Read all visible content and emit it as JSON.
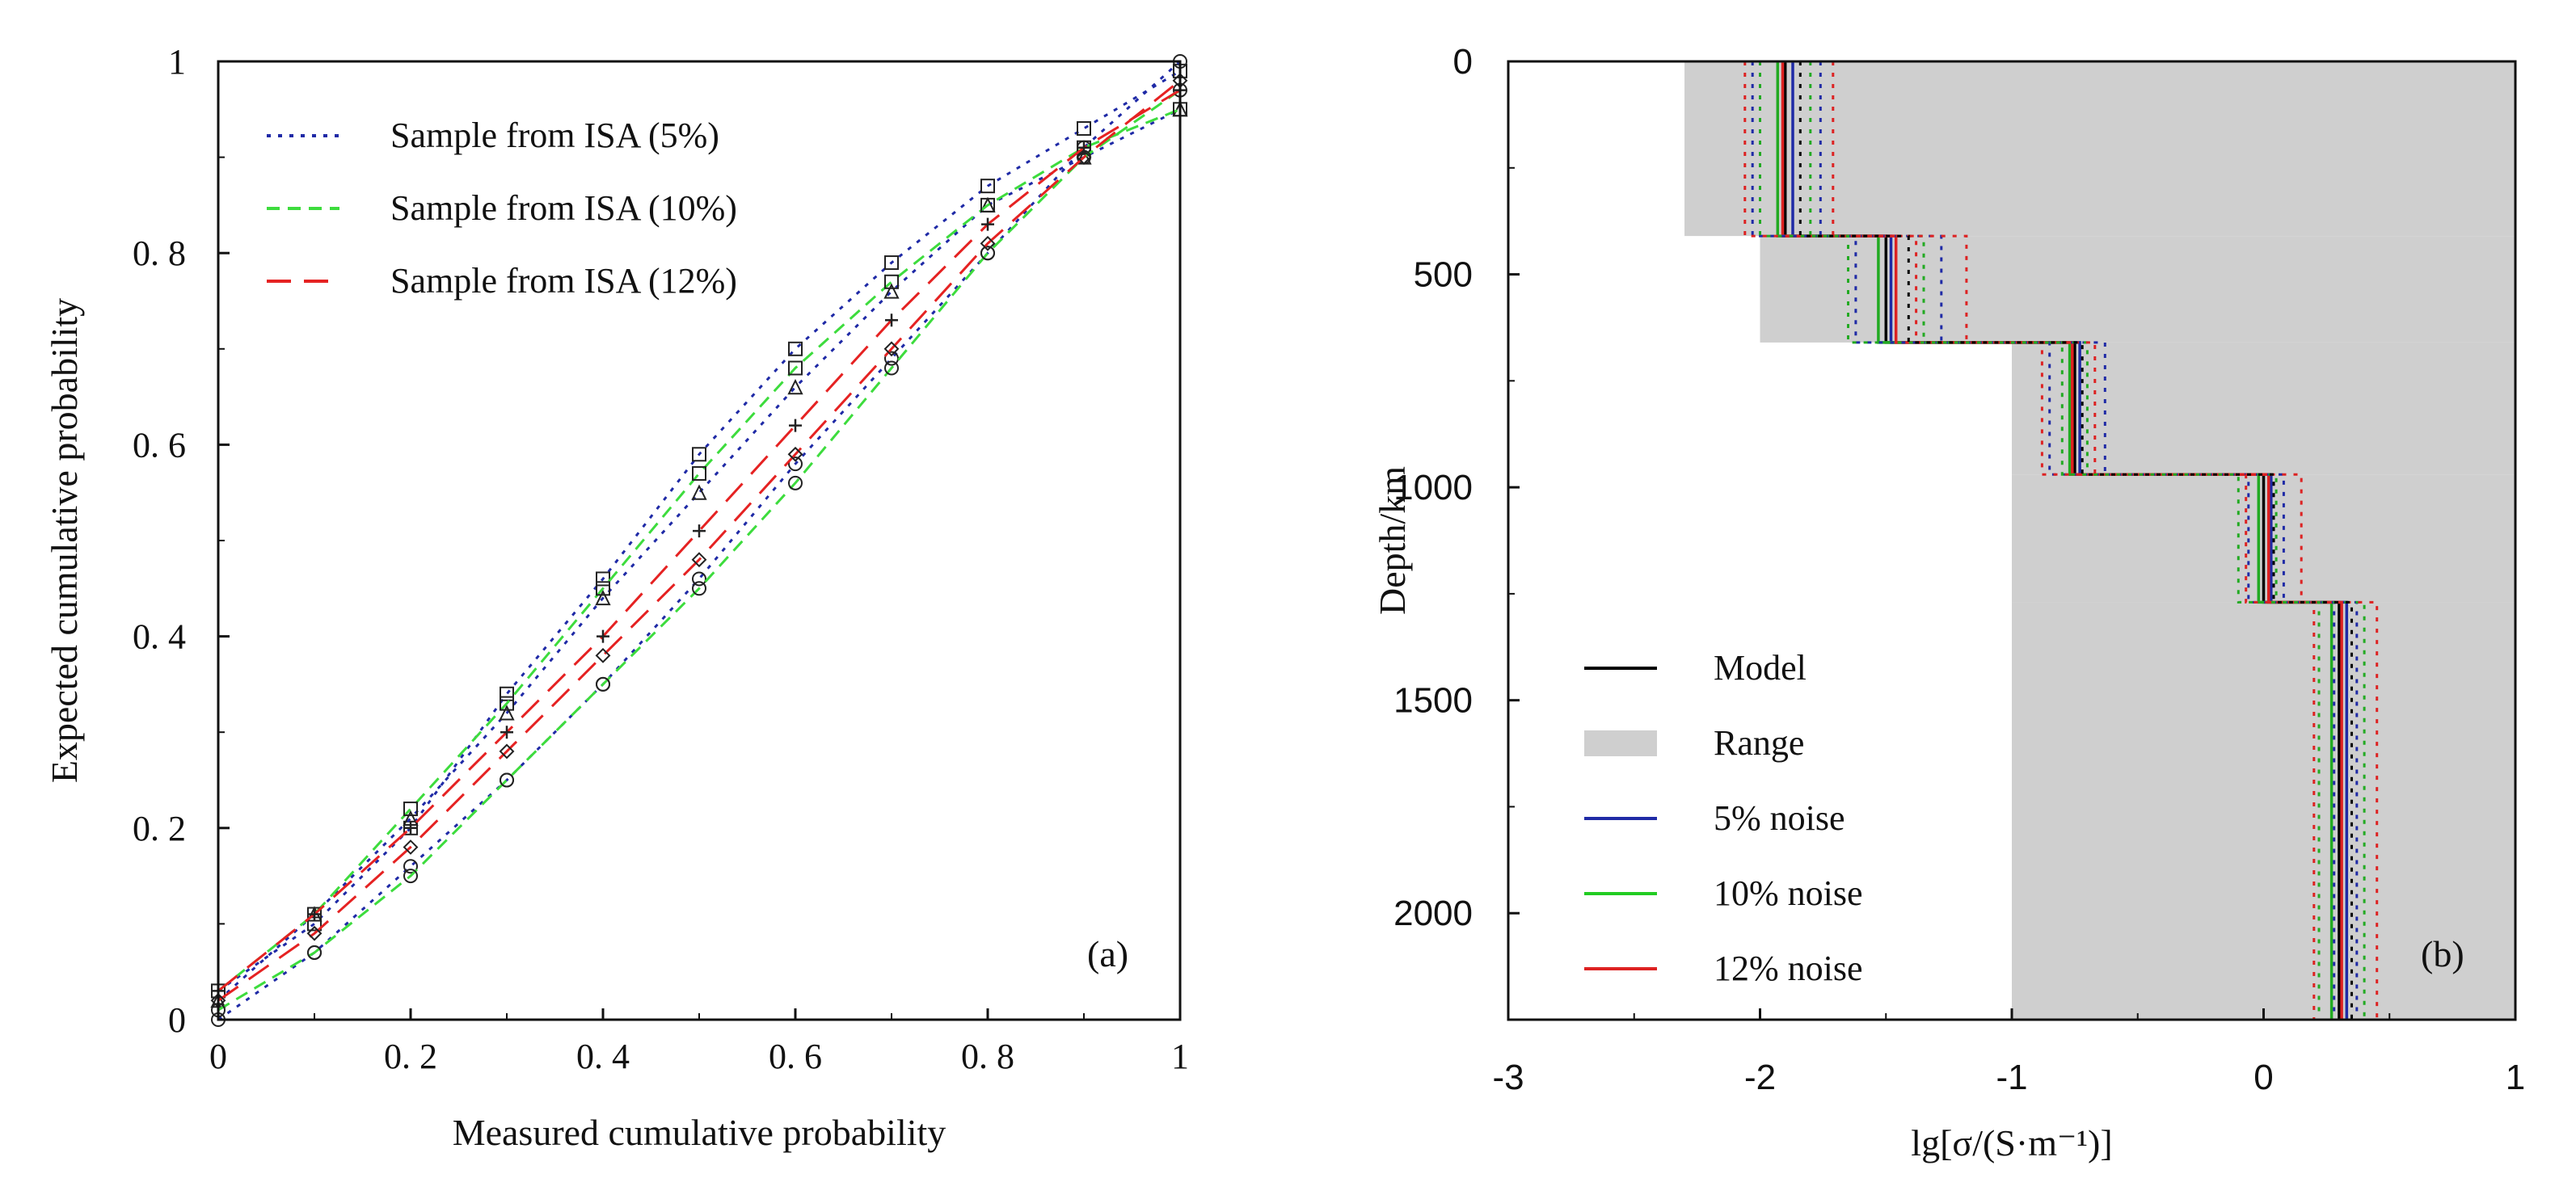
{
  "chart_data": [
    {
      "type": "scatter",
      "panel_label": "(a)",
      "xlabel": "Measured cumulative probability",
      "ylabel": "Expected cumulative probability",
      "xlim": [
        0,
        1
      ],
      "ylim": [
        0,
        1
      ],
      "xticks": [
        "0",
        "0. 2",
        "0. 4",
        "0. 6",
        "0. 8",
        "1"
      ],
      "yticks": [
        "0",
        "0. 2",
        "0. 4",
        "0. 6",
        "0. 8",
        "1"
      ],
      "legend": [
        "Sample from ISA (5%)",
        "Sample from ISA (10%)",
        "Sample from ISA (12%)"
      ],
      "series": [
        {
          "name": "Sample from ISA (5%)",
          "color": "#1f2aa6",
          "dash": "dotted",
          "marker": "square",
          "points": [
            [
              0.0,
              0.03
            ],
            [
              0.1,
              0.1
            ],
            [
              0.2,
              0.2
            ],
            [
              0.3,
              0.34
            ],
            [
              0.4,
              0.46
            ],
            [
              0.5,
              0.59
            ],
            [
              0.6,
              0.7
            ],
            [
              0.7,
              0.79
            ],
            [
              0.8,
              0.87
            ],
            [
              0.9,
              0.93
            ],
            [
              1.0,
              0.99
            ]
          ]
        },
        {
          "name": "Sample from ISA (5%)",
          "color": "#1f2aa6",
          "dash": "dotted",
          "marker": "circle",
          "points": [
            [
              0.0,
              0.0
            ],
            [
              0.1,
              0.07
            ],
            [
              0.2,
              0.16
            ],
            [
              0.3,
              0.25
            ],
            [
              0.4,
              0.35
            ],
            [
              0.5,
              0.46
            ],
            [
              0.6,
              0.58
            ],
            [
              0.7,
              0.69
            ],
            [
              0.8,
              0.8
            ],
            [
              0.9,
              0.91
            ],
            [
              1.0,
              1.0
            ]
          ]
        },
        {
          "name": "Sample from ISA (5%)",
          "color": "#1f2aa6",
          "dash": "dotted",
          "marker": "tri",
          "points": [
            [
              0.0,
              0.02
            ],
            [
              0.1,
              0.11
            ],
            [
              0.2,
              0.21
            ],
            [
              0.3,
              0.32
            ],
            [
              0.4,
              0.44
            ],
            [
              0.5,
              0.55
            ],
            [
              0.6,
              0.66
            ],
            [
              0.7,
              0.76
            ],
            [
              0.8,
              0.85
            ],
            [
              0.9,
              0.9
            ],
            [
              1.0,
              0.95
            ]
          ]
        },
        {
          "name": "Sample from ISA (10%)",
          "color": "#3ddc3d",
          "dash": "dashed",
          "marker": "square",
          "points": [
            [
              0.0,
              0.03
            ],
            [
              0.1,
              0.11
            ],
            [
              0.2,
              0.22
            ],
            [
              0.3,
              0.33
            ],
            [
              0.4,
              0.45
            ],
            [
              0.5,
              0.57
            ],
            [
              0.6,
              0.68
            ],
            [
              0.7,
              0.77
            ],
            [
              0.8,
              0.85
            ],
            [
              0.9,
              0.91
            ],
            [
              1.0,
              0.95
            ]
          ]
        },
        {
          "name": "Sample from ISA (10%)",
          "color": "#3ddc3d",
          "dash": "dashed",
          "marker": "circle",
          "points": [
            [
              0.0,
              0.01
            ],
            [
              0.1,
              0.07
            ],
            [
              0.2,
              0.15
            ],
            [
              0.3,
              0.25
            ],
            [
              0.4,
              0.35
            ],
            [
              0.5,
              0.45
            ],
            [
              0.6,
              0.56
            ],
            [
              0.7,
              0.68
            ],
            [
              0.8,
              0.8
            ],
            [
              0.9,
              0.9
            ],
            [
              1.0,
              0.97
            ]
          ]
        },
        {
          "name": "Sample from ISA (12%)",
          "color": "#e52222",
          "dash": "longdash",
          "marker": "plus",
          "points": [
            [
              0.0,
              0.03
            ],
            [
              0.1,
              0.11
            ],
            [
              0.2,
              0.2
            ],
            [
              0.3,
              0.3
            ],
            [
              0.4,
              0.4
            ],
            [
              0.5,
              0.51
            ],
            [
              0.6,
              0.62
            ],
            [
              0.7,
              0.73
            ],
            [
              0.8,
              0.83
            ],
            [
              0.9,
              0.91
            ],
            [
              1.0,
              0.97
            ]
          ]
        },
        {
          "name": "Sample from ISA (12%)",
          "color": "#e52222",
          "dash": "longdash",
          "marker": "diamond",
          "points": [
            [
              0.0,
              0.02
            ],
            [
              0.1,
              0.09
            ],
            [
              0.2,
              0.18
            ],
            [
              0.3,
              0.28
            ],
            [
              0.4,
              0.38
            ],
            [
              0.5,
              0.48
            ],
            [
              0.6,
              0.59
            ],
            [
              0.7,
              0.7
            ],
            [
              0.8,
              0.81
            ],
            [
              0.9,
              0.9
            ],
            [
              1.0,
              0.98
            ]
          ]
        }
      ]
    },
    {
      "type": "line",
      "panel_label": "(b)",
      "xlabel": "lg[σ/(S·m⁻¹)]",
      "ylabel": "Depth/km",
      "xlim": [
        -3,
        1
      ],
      "ylim": [
        0,
        2250
      ],
      "y_inverted": true,
      "xticks": [
        "-3",
        "-2",
        "-1",
        "0",
        "1"
      ],
      "yticks": [
        "0",
        "500",
        "1000",
        "1500",
        "2000"
      ],
      "layer_boundaries_km": [
        0,
        410,
        660,
        970,
        1270,
        2250
      ],
      "range_min": [
        -2.3,
        -2.0,
        -1.0,
        -1.0,
        -1.0
      ],
      "range_max": [
        1.0,
        1.0,
        1.0,
        1.0,
        1.0
      ],
      "legend": [
        "Model",
        "Range",
        "5% noise",
        "10% noise",
        "12% noise"
      ],
      "series": [
        {
          "name": "Model",
          "color": "#000000",
          "style": "solid",
          "values": [
            -1.9,
            -1.5,
            -0.75,
            0.0,
            0.3
          ]
        },
        {
          "name": "5% noise",
          "color": "#1f2aa6",
          "style": "solid",
          "values": [
            -1.87,
            -1.48,
            -0.73,
            0.03,
            0.33
          ]
        },
        {
          "name": "10% noise",
          "color": "#22aa22",
          "style": "solid",
          "values": [
            -1.93,
            -1.53,
            -0.77,
            -0.02,
            0.27
          ]
        },
        {
          "name": "12% noise",
          "color": "#dd2222",
          "style": "solid",
          "values": [
            -1.91,
            -1.46,
            -0.76,
            0.02,
            0.31
          ]
        },
        {
          "name": "5% noise",
          "color": "#1f2aa6",
          "style": "dotted",
          "values": [
            -2.03,
            -1.62,
            -0.85,
            -0.06,
            0.28
          ]
        },
        {
          "name": "5% noise",
          "color": "#1f2aa6",
          "style": "dotted",
          "values": [
            -1.76,
            -1.28,
            -0.63,
            0.08,
            0.37
          ]
        },
        {
          "name": "10% noise",
          "color": "#22aa22",
          "style": "dotted",
          "values": [
            -2.0,
            -1.65,
            -0.8,
            -0.1,
            0.22
          ]
        },
        {
          "name": "10% noise",
          "color": "#22aa22",
          "style": "dotted",
          "values": [
            -1.8,
            -1.35,
            -0.7,
            0.05,
            0.4
          ]
        },
        {
          "name": "12% noise",
          "color": "#dd2222",
          "style": "dotted",
          "values": [
            -2.06,
            -1.38,
            -0.67,
            0.15,
            0.45
          ]
        },
        {
          "name": "12% noise",
          "color": "#dd2222",
          "style": "dotted",
          "values": [
            -1.71,
            -1.18,
            -0.88,
            -0.07,
            0.2
          ]
        },
        {
          "name": "Model",
          "color": "#000000",
          "style": "dotted",
          "values": [
            -1.84,
            -1.41,
            -0.72,
            0.04,
            0.35
          ]
        }
      ]
    }
  ]
}
